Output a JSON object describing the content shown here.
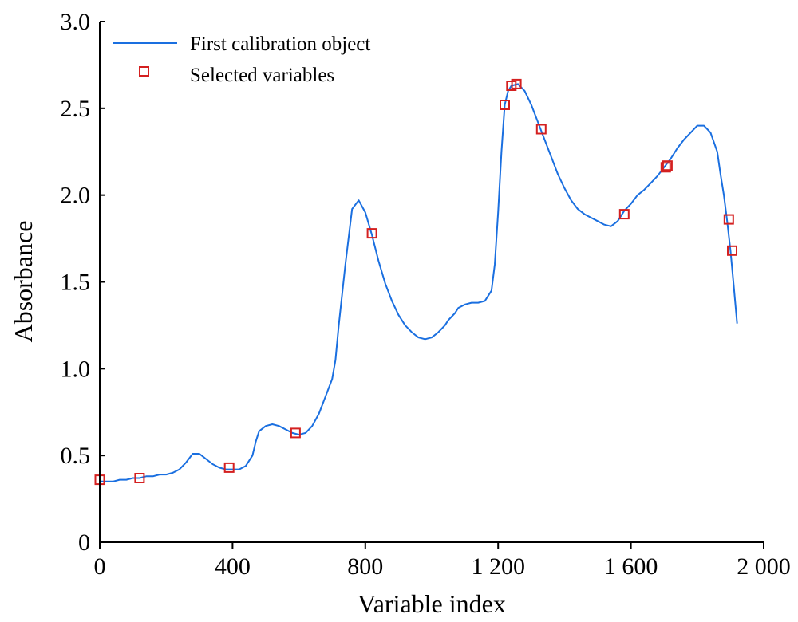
{
  "chart_data": {
    "type": "line",
    "xlabel": "Variable index",
    "ylabel": "Absorbance",
    "xlim": [
      0,
      2000
    ],
    "ylim": [
      0,
      3.0
    ],
    "x_ticks": [
      0,
      400,
      800,
      1200,
      1600,
      2000
    ],
    "x_tick_labels": [
      "0",
      "400",
      "800",
      "1 200",
      "1 600",
      "2 000"
    ],
    "y_ticks": [
      0,
      0.5,
      1.0,
      1.5,
      2.0,
      2.5,
      3.0
    ],
    "y_tick_labels": [
      "0",
      "0.5",
      "1.0",
      "1.5",
      "2.0",
      "2.5",
      "3.0"
    ],
    "grid": false,
    "legend_position": "top-left",
    "colors": {
      "line": "#1a6fe0",
      "marker": "#d42020",
      "axis": "#000000"
    },
    "series": [
      {
        "name": "First calibration object",
        "kind": "line",
        "x": [
          0,
          20,
          40,
          60,
          80,
          100,
          120,
          140,
          160,
          180,
          200,
          220,
          240,
          260,
          280,
          300,
          320,
          340,
          360,
          380,
          400,
          420,
          440,
          460,
          470,
          480,
          500,
          520,
          540,
          560,
          580,
          600,
          620,
          640,
          660,
          680,
          700,
          710,
          720,
          740,
          760,
          780,
          800,
          820,
          840,
          860,
          880,
          900,
          920,
          940,
          960,
          980,
          1000,
          1020,
          1040,
          1050,
          1060,
          1070,
          1080,
          1100,
          1120,
          1140,
          1160,
          1180,
          1190,
          1200,
          1210,
          1220,
          1230,
          1240,
          1260,
          1280,
          1300,
          1320,
          1340,
          1360,
          1380,
          1400,
          1420,
          1440,
          1460,
          1480,
          1500,
          1520,
          1540,
          1560,
          1580,
          1600,
          1620,
          1640,
          1660,
          1680,
          1700,
          1720,
          1740,
          1760,
          1780,
          1800,
          1820,
          1840,
          1860,
          1870,
          1880,
          1890,
          1900,
          1910,
          1920
        ],
        "y": [
          0.35,
          0.35,
          0.35,
          0.36,
          0.36,
          0.37,
          0.37,
          0.38,
          0.38,
          0.39,
          0.39,
          0.4,
          0.42,
          0.46,
          0.51,
          0.51,
          0.48,
          0.45,
          0.43,
          0.42,
          0.42,
          0.42,
          0.44,
          0.5,
          0.58,
          0.64,
          0.67,
          0.68,
          0.67,
          0.65,
          0.63,
          0.62,
          0.63,
          0.67,
          0.74,
          0.84,
          0.94,
          1.05,
          1.25,
          1.6,
          1.92,
          1.97,
          1.9,
          1.77,
          1.62,
          1.49,
          1.39,
          1.31,
          1.25,
          1.21,
          1.18,
          1.17,
          1.18,
          1.21,
          1.25,
          1.28,
          1.3,
          1.32,
          1.35,
          1.37,
          1.38,
          1.38,
          1.39,
          1.45,
          1.6,
          1.9,
          2.25,
          2.52,
          2.6,
          2.63,
          2.64,
          2.6,
          2.52,
          2.42,
          2.32,
          2.22,
          2.12,
          2.04,
          1.97,
          1.92,
          1.89,
          1.87,
          1.85,
          1.83,
          1.82,
          1.85,
          1.91,
          1.95,
          2.0,
          2.03,
          2.07,
          2.11,
          2.16,
          2.21,
          2.27,
          2.32,
          2.36,
          2.4,
          2.4,
          2.36,
          2.25,
          2.12,
          2.0,
          1.85,
          1.68,
          1.47,
          1.26
        ]
      },
      {
        "name": "Selected variables",
        "kind": "markers",
        "points": [
          {
            "x": 0,
            "y": 0.36
          },
          {
            "x": 120,
            "y": 0.37
          },
          {
            "x": 390,
            "y": 0.43
          },
          {
            "x": 590,
            "y": 0.63
          },
          {
            "x": 820,
            "y": 1.78
          },
          {
            "x": 1220,
            "y": 2.52
          },
          {
            "x": 1240,
            "y": 2.63
          },
          {
            "x": 1255,
            "y": 2.64
          },
          {
            "x": 1330,
            "y": 2.38
          },
          {
            "x": 1580,
            "y": 1.89
          },
          {
            "x": 1705,
            "y": 2.16
          },
          {
            "x": 1710,
            "y": 2.17
          },
          {
            "x": 1895,
            "y": 1.86
          },
          {
            "x": 1905,
            "y": 1.68
          }
        ]
      }
    ]
  }
}
